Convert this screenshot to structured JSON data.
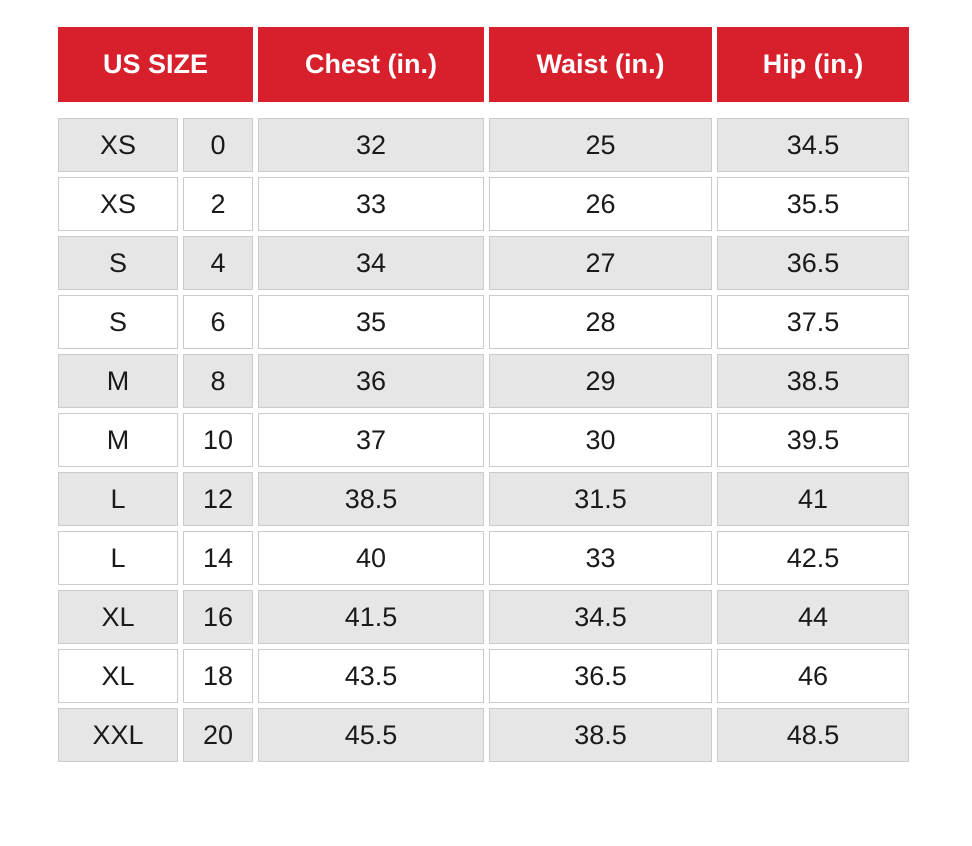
{
  "theme": {
    "header_bg": "#d7202c",
    "header_text": "#ffffff",
    "row_alt_bg": "#e6e6e6",
    "row_bg": "#ffffff",
    "cell_border": "#cbcbcb",
    "body_text": "#1a1a1a",
    "page_bg": "#ffffff"
  },
  "chart_data": {
    "type": "table",
    "title": "",
    "columns": [
      "US SIZE",
      "Chest (in.)",
      "Waist (in.)",
      "Hip (in.)"
    ],
    "us_size_subcolumns": [
      "size letter",
      "size number"
    ],
    "rows": [
      [
        "XS",
        0,
        32,
        25,
        34.5
      ],
      [
        "XS",
        2,
        33,
        26,
        35.5
      ],
      [
        "S",
        4,
        34,
        27,
        36.5
      ],
      [
        "S",
        6,
        35,
        28,
        37.5
      ],
      [
        "M",
        8,
        36,
        29,
        38.5
      ],
      [
        "M",
        10,
        37,
        30,
        39.5
      ],
      [
        "L",
        12,
        38.5,
        31.5,
        41
      ],
      [
        "L",
        14,
        40,
        33,
        42.5
      ],
      [
        "XL",
        16,
        41.5,
        34.5,
        44
      ],
      [
        "XL",
        18,
        43.5,
        36.5,
        46
      ],
      [
        "XXL",
        20,
        45.5,
        38.5,
        48.5
      ]
    ],
    "layout": {
      "row_striping": "first body row shaded, alternating",
      "grid": "separated cells with 5px gaps",
      "header_spans_two_subcolumns": true
    }
  }
}
